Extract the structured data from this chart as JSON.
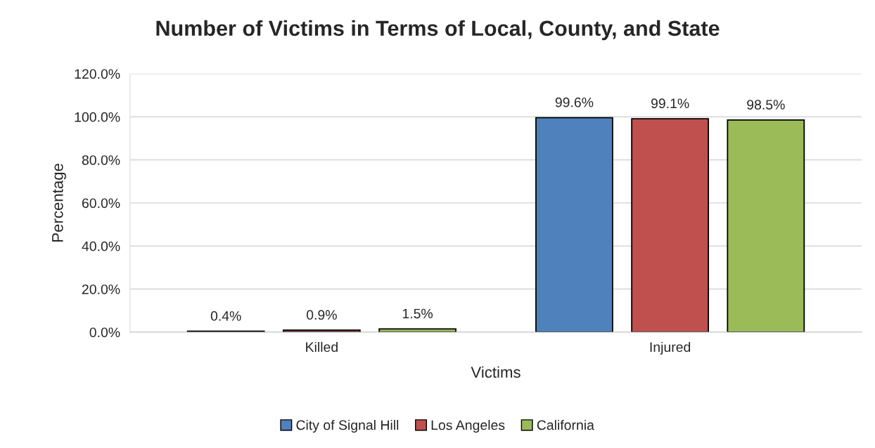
{
  "chart_data": {
    "type": "bar",
    "title": "Number of Victims in Terms of Local, County, and State",
    "xlabel": "Victims",
    "ylabel": "Percentage",
    "categories": [
      "Killed",
      "Injured"
    ],
    "series": [
      {
        "name": "City of Signal Hill",
        "color": "#4f81bd",
        "values": [
          0.4,
          99.6
        ],
        "value_labels": [
          "0.4%",
          "99.6%"
        ]
      },
      {
        "name": "Los Angeles",
        "color": "#c0504d",
        "values": [
          0.9,
          99.1
        ],
        "value_labels": [
          "0.9%",
          "99.1%"
        ]
      },
      {
        "name": "California",
        "color": "#9bbb59",
        "values": [
          1.5,
          98.5
        ],
        "value_labels": [
          "1.5%",
          "98.5%"
        ]
      }
    ],
    "ylim": [
      0,
      120
    ],
    "yticks": [
      {
        "value": 0,
        "label": "0.0%"
      },
      {
        "value": 20,
        "label": "20.0%"
      },
      {
        "value": 40,
        "label": "40.0%"
      },
      {
        "value": 60,
        "label": "60.0%"
      },
      {
        "value": 80,
        "label": "80.0%"
      },
      {
        "value": 100,
        "label": "100.0%"
      },
      {
        "value": 120,
        "label": "120.0%"
      }
    ],
    "grid": "y",
    "legend": "bottom"
  }
}
